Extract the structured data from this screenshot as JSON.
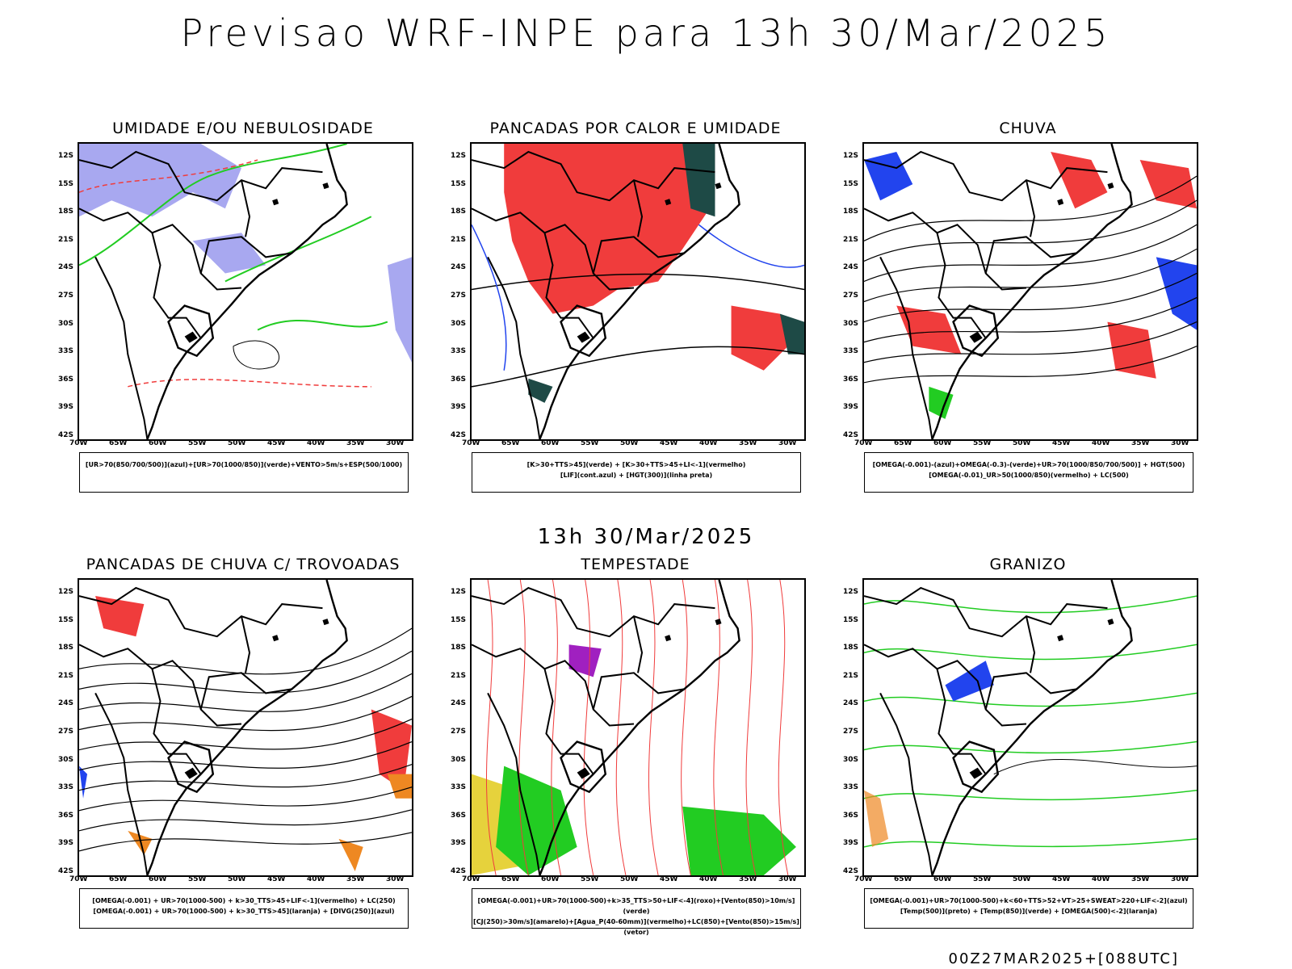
{
  "main_title": "Previsao WRF-INPE  para 13h 30/Mar/2025",
  "mid_time": "13h 30/Mar/2025",
  "footer": "00Z27MAR2025+[088UTC]",
  "lat_labels": [
    "12S",
    "15S",
    "18S",
    "21S",
    "24S",
    "27S",
    "30S",
    "33S",
    "36S",
    "39S",
    "42S"
  ],
  "lon_labels": [
    "70W",
    "65W",
    "60W",
    "55W",
    "50W",
    "45W",
    "40W",
    "35W",
    "30W"
  ],
  "panels": [
    {
      "title": "UMIDADE E/OU NEBULOSIDADE",
      "legend_line1": "[UR>70(850/700/500)](azul)+[UR>70(1000/850)](verde)+VENTO>5m/s+ESP(500/1000)",
      "legend_line2": ""
    },
    {
      "title": "PANCADAS POR CALOR E UMIDADE",
      "legend_line1": "[K>30+TTS>45](verde) + [K>30+TTS>45+LI<-1](vermelho)",
      "legend_line2": "[LIF](cont.azul) + [HGT(300)](linha preta)"
    },
    {
      "title": "CHUVA",
      "legend_line1": "[OMEGA(-0.001)-(azul)+OMEGA(-0.3)-(verde)+UR>70(1000/850/700/500)] + HGT(500)",
      "legend_line2": "[OMEGA(-0.01)_UR>50(1000/850)(vermelho) + LC(500)"
    },
    {
      "title": "PANCADAS DE CHUVA C/ TROVOADAS",
      "legend_line1": "[OMEGA(-0.001) + UR>70(1000-500) + k>30_TTS>45+LIF<-1](vermelho) + LC(250)",
      "legend_line2": "[OMEGA(-0.001) + UR>70(1000-500) + k>30_TTS>45](laranja) + [DIVG(250)](azul)"
    },
    {
      "title": "TEMPESTADE",
      "legend_line1": "[OMEGA(-0.001)+UR>70(1000-500)+k>35_TTS>50+LIF<-4](roxo)+[Vento(850)>10m/s](verde)",
      "legend_line2": "[CJ(250)>30m/s](amarelo)+[Agua_P(40-60mm)](vermelho)+LC(850)+[Vento(850)>15m/s](vetor)"
    },
    {
      "title": "GRANIZO",
      "legend_line1": "[OMEGA(-0.001)+UR>70(1000-500)+k<60+TTS>52+VT>25+SWEAT>220+LIF<-2](azul)",
      "legend_line2": "[Temp(500)](preto) + [Temp(850)](verde) + [OMEGA(500)<-2](laranja)"
    }
  ],
  "colors": {
    "blue_humidity": "#a8a8f0",
    "green": "#22cc22",
    "red": "#f03c3c",
    "dark_teal": "#1e4a46",
    "blue": "#2244ee",
    "orange": "#ee8822",
    "yellow": "#e6d23c",
    "purple": "#a020c0"
  }
}
